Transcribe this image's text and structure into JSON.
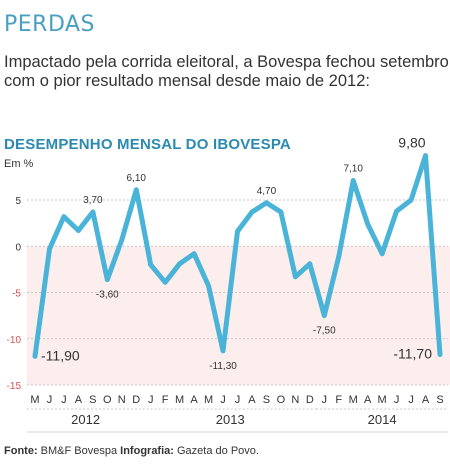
{
  "kicker": "PERDAS",
  "lead": "Impactado pela corrida eleitoral, a Bovespa fechou setembro com o pior resultado mensal desde maio de 2012:",
  "source": {
    "label_fonte": "Fonte:",
    "fonte": "BM&F Bovespa",
    "label_infografia": "Infografia:",
    "infografia": "Gazeta do Povo."
  },
  "colors": {
    "line": "#4ab3d8",
    "negative_band": "#fdeeee",
    "axis_text": "#333333",
    "negative_tick": "#d9534f",
    "title": "#2a8ab0"
  },
  "chart_data": {
    "type": "line",
    "title": "DESEMPENHO MENSAL DO IBOVESPA",
    "ylabel": "Em %",
    "ylim": [
      -15,
      10
    ],
    "yticks": [
      5,
      0,
      -5,
      -10,
      -15
    ],
    "month_labels": [
      "M",
      "J",
      "J",
      "A",
      "S",
      "O",
      "N",
      "D",
      "J",
      "F",
      "M",
      "A",
      "M",
      "J",
      "J",
      "A",
      "S",
      "O",
      "N",
      "D",
      "J",
      "F",
      "M",
      "A",
      "M",
      "J",
      "J",
      "A",
      "S"
    ],
    "years": [
      {
        "label": "2012",
        "start": 0,
        "end": 7
      },
      {
        "label": "2013",
        "start": 8,
        "end": 19
      },
      {
        "label": "2014",
        "start": 20,
        "end": 28
      }
    ],
    "series": [
      {
        "values": [
          -11.9,
          -0.3,
          3.2,
          1.7,
          3.7,
          -3.6,
          0.7,
          6.1,
          -2.0,
          -3.9,
          -1.9,
          -0.8,
          -4.3,
          -11.3,
          1.6,
          3.7,
          4.7,
          3.7,
          -3.3,
          -1.9,
          -7.5,
          -1.1,
          7.1,
          2.4,
          -0.8,
          3.8,
          5.0,
          9.8,
          -11.7
        ]
      }
    ],
    "data_labels": [
      {
        "index": 0,
        "text": "-11,90"
      },
      {
        "index": 4,
        "text": "3,70"
      },
      {
        "index": 5,
        "text": "-3,60"
      },
      {
        "index": 7,
        "text": "6,10"
      },
      {
        "index": 13,
        "text": "-11,30"
      },
      {
        "index": 16,
        "text": "4,70"
      },
      {
        "index": 20,
        "text": "-7,50"
      },
      {
        "index": 22,
        "text": "7,10"
      },
      {
        "index": 27,
        "text": "9,80"
      },
      {
        "index": 28,
        "text": "-11,70"
      }
    ]
  }
}
